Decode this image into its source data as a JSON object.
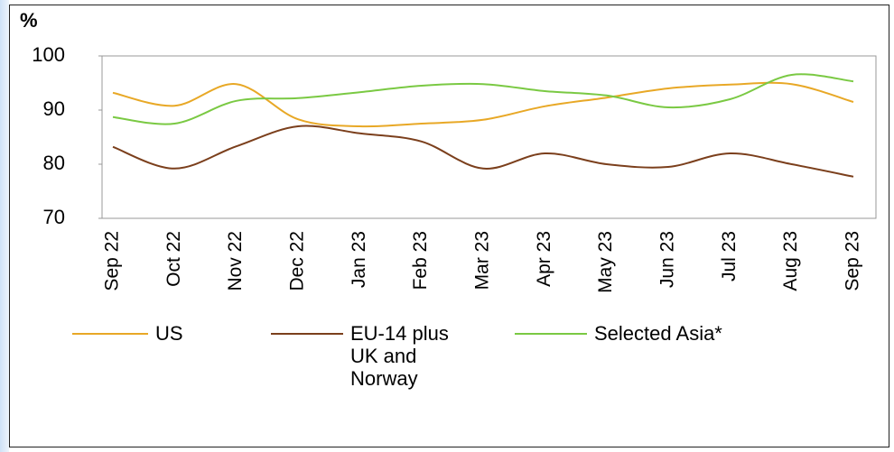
{
  "chart_data": {
    "type": "line",
    "y_label": "%",
    "categories": [
      "Sep 22",
      "Oct 22",
      "Nov 22",
      "Dec 22",
      "Jan 23",
      "Feb 23",
      "Mar 23",
      "Apr 23",
      "May 23",
      "Jun 23",
      "Jul 23",
      "Aug 23",
      "Sep 23"
    ],
    "series": [
      {
        "name": "US",
        "color": "#e8a826",
        "values": [
          93.2,
          90.8,
          94.8,
          88.3,
          87,
          87.5,
          88.2,
          90.7,
          92.3,
          94,
          94.7,
          94.8,
          91.5
        ]
      },
      {
        "name": "EU-14 plus UK and Norway",
        "color": "#7b3f1c",
        "values": [
          83.2,
          79.2,
          83.3,
          87,
          85.7,
          84.2,
          79.2,
          82,
          80,
          79.5,
          82,
          80,
          77.7
        ]
      },
      {
        "name": "Selected Asia*",
        "color": "#7ac943",
        "values": [
          88.7,
          87.5,
          91.7,
          92.2,
          93.3,
          94.5,
          94.8,
          93.5,
          92.7,
          90.5,
          92,
          96.5,
          95.3
        ]
      }
    ],
    "ylim": [
      70,
      100
    ],
    "yticks": [
      70,
      80,
      90,
      100
    ],
    "grid": false
  }
}
